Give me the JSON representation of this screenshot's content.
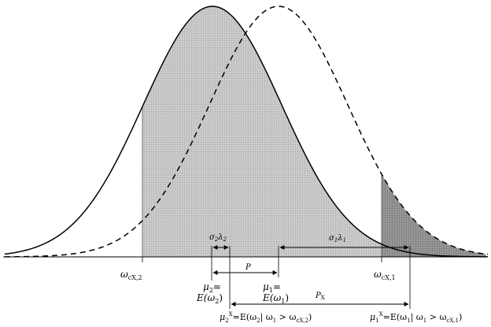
{
  "diagram": {
    "title": "",
    "curves": [
      {
        "name": "distribution-2",
        "style": "solid",
        "color": "#000000"
      },
      {
        "name": "distribution-1",
        "style": "dashed",
        "color": "#000000"
      }
    ],
    "shading": {
      "truncated_area_2": {
        "color": "#c8c8c8",
        "hatch": "#8a8a8a"
      },
      "truncated_area_1": {
        "color": "#8f8f8f",
        "hatch": "#555555"
      }
    },
    "labels": {
      "omega_c2": "ω",
      "omega_c2_sub": "cX,2",
      "omega_c1": "ω",
      "omega_c1_sub": "cX,1",
      "sigma2lambda2": "σ",
      "sigma2lambda2_sub": "2",
      "sigma2lambda2_lam": "λ",
      "sigma2lambda2_lam_sub": "2",
      "sigma1lambda1": "σ",
      "sigma1lambda1_sub": "1",
      "sigma1lambda1_lam": "λ",
      "sigma1lambda1_lam_sub": "1",
      "P": "P",
      "Px": "P",
      "Px_sub": "X",
      "mu2_line1": "μ",
      "mu2_sub": "2",
      "mu2_eq": "=",
      "mu2_line2": "E(ω",
      "mu2_line2_sub": "2",
      "mu2_line2_end": ")",
      "mu1_line1": "μ",
      "mu1_sub": "1",
      "mu1_eq": "=",
      "mu1_line2": "E(ω",
      "mu1_line2_sub": "1",
      "mu1_line2_end": ")",
      "mu2x_prefix": "μ",
      "mu2x_sub": "2",
      "mu2x_sup": "X",
      "mu2x_expr": "=E(ω",
      "mu2x_expr_sub": "2",
      "mu2x_cond": "| ω",
      "mu2x_cond_sub": "1",
      "mu2x_gt": " > ω",
      "mu2x_gt_sub": "cX,2",
      "mu2x_end": ")",
      "mu1x_prefix": "μ",
      "mu1x_sub": "1",
      "mu1x_sup": "X",
      "mu1x_expr": "=E(ω",
      "mu1x_expr_sub": "1",
      "mu1x_cond": "| ω",
      "mu1x_cond_sub": "1",
      "mu1x_gt": " > ω",
      "mu1x_gt_sub": "cX,1",
      "mu1x_end": ")"
    }
  }
}
